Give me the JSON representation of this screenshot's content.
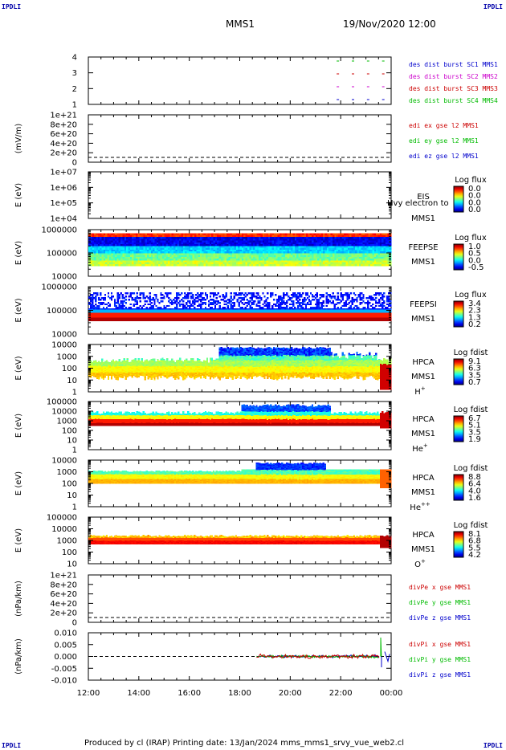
{
  "header": {
    "left_logo": "IPDLI",
    "right_logo": "IPDLI",
    "mission": "MMS1",
    "date": "19/Nov/2020 12:00"
  },
  "footer": {
    "left_logo": "IPDLI",
    "right_logo": "IPDLI",
    "text": "Produced by cl (IRAP)   Printing date: 13/Jan/2024   mms_mms1_srvy_vue_web2.cl"
  },
  "x_axis": {
    "ticks": [
      "12:00",
      "14:00",
      "16:00",
      "18:00",
      "20:00",
      "22:00",
      "00:00"
    ]
  },
  "panels": {
    "p1": {
      "yticks": [
        "4",
        "3",
        "2",
        "1"
      ],
      "legend": [
        "des dist burst SC1 MMS1",
        "des dist burst SC2 MMS2",
        "des dist burst SC3 MMS3",
        "des dist burst SC4 MMS4"
      ],
      "colors": [
        "#0000cc",
        "#cc00cc",
        "#cc0000",
        "#00bb00"
      ]
    },
    "p2": {
      "ylabel": "(mV/m)",
      "yticks": [
        "1e+21",
        "8e+20",
        "6e+20",
        "4e+20",
        "2e+20",
        "0"
      ],
      "legend": [
        "edi ex gse l2 MMS1",
        "edi ey gse l2 MMS1",
        "edi ez gse l2 MMS1"
      ],
      "colors": [
        "#cc0000",
        "#00bb00",
        "#0000cc"
      ]
    },
    "p3": {
      "ylabel": "E (eV)",
      "yticks": [
        "1e+07",
        "1e+06",
        "1e+05",
        "1e+04"
      ],
      "name": "EIS",
      "overlay": "Hvy electron to",
      "sc": "MMS1",
      "cb_title": "Log flux",
      "cb_ticks": [
        "0.0",
        "0.0",
        "0.0",
        "0.0"
      ]
    },
    "p4": {
      "ylabel": "E (eV)",
      "yticks": [
        "1000000",
        "100000",
        "10000"
      ],
      "name": "FEEPSE",
      "sc": "MMS1",
      "cb_title": "Log flux",
      "cb_ticks": [
        "1.0",
        "0.5",
        "0.0",
        "-0.5"
      ]
    },
    "p5": {
      "ylabel": "E (eV)",
      "yticks": [
        "1000000",
        "100000",
        "10000"
      ],
      "name": "FEEPSI",
      "sc": "MMS1",
      "cb_title": "Log flux",
      "cb_ticks": [
        "3.4",
        "2.3",
        "1.3",
        "0.2"
      ]
    },
    "p6": {
      "ylabel": "E (eV)",
      "yticks": [
        "10000",
        "1000",
        "100",
        "10",
        "1"
      ],
      "name": "HPCA",
      "sc": "MMS1",
      "species": "H",
      "species_sup": "+",
      "cb_title": "Log fdist",
      "cb_ticks": [
        "9.1",
        "6.3",
        "3.5",
        "0.7"
      ]
    },
    "p7": {
      "ylabel": "E (eV)",
      "yticks": [
        "100000",
        "10000",
        "1000",
        "100",
        "10",
        "1"
      ],
      "name": "HPCA",
      "sc": "MMS1",
      "species": "He",
      "species_sup": "+",
      "cb_title": "Log fdist",
      "cb_ticks": [
        "6.7",
        "5.1",
        "3.5",
        "1.9"
      ]
    },
    "p8": {
      "ylabel": "E (eV)",
      "yticks": [
        "10000",
        "1000",
        "100",
        "10",
        "1"
      ],
      "name": "HPCA",
      "sc": "MMS1",
      "species": "He",
      "species_sup": "++",
      "cb_title": "Log fdist",
      "cb_ticks": [
        "8.8",
        "6.4",
        "4.0",
        "1.6"
      ]
    },
    "p9": {
      "ylabel": "E (eV)",
      "yticks": [
        "100000",
        "10000",
        "1000",
        "100",
        "10"
      ],
      "name": "HPCA",
      "sc": "MMS1",
      "species": "O",
      "species_sup": "+",
      "cb_title": "Log fdist",
      "cb_ticks": [
        "8.1",
        "6.8",
        "5.5",
        "4.2"
      ]
    },
    "p10": {
      "ylabel": "(nPa/km)",
      "yticks": [
        "1e+21",
        "8e+20",
        "6e+20",
        "4e+20",
        "2e+20",
        "0"
      ],
      "legend": [
        "divPe x gse MMS1",
        "divPe y gse MMS1",
        "divPe z gse MMS1"
      ],
      "colors": [
        "#cc0000",
        "#00bb00",
        "#0000cc"
      ]
    },
    "p11": {
      "ylabel": "(nPa/km)",
      "yticks": [
        "0.010",
        "0.005",
        "0.000",
        "-0.005",
        "-0.010"
      ],
      "legend": [
        "divPi x gse MMS1",
        "divPi y gse MMS1",
        "divPi z gse MMS1"
      ],
      "colors": [
        "#cc0000",
        "#00bb00",
        "#0000cc"
      ]
    }
  },
  "chart_data": {
    "type": "heatmap",
    "x_range": [
      "19/Nov/2020 12:00",
      "20/Nov/2020 00:00"
    ],
    "panels": [
      {
        "id": "p1",
        "type": "scatter",
        "description_series": [
          "des dist burst SC1 MMS1",
          "des dist burst SC2 MMS2",
          "des dist burst SC3 MMS3",
          "des dist burst SC4 MMS4"
        ],
        "ylim": [
          0.5,
          4.5
        ]
      },
      {
        "id": "p2",
        "type": "line",
        "ylabel": "(mV/m)",
        "ylim": [
          0,
          1e+21
        ]
      },
      {
        "id": "p3",
        "type": "heatmap",
        "ylabel": "E (eV)",
        "ylog": true,
        "ylim": [
          10000.0,
          10000000.0
        ]
      },
      {
        "id": "p4",
        "type": "heatmap",
        "ylabel": "E (eV)",
        "ylog": true,
        "ylim": [
          10000,
          1000000
        ]
      },
      {
        "id": "p5",
        "type": "heatmap",
        "ylabel": "E (eV)",
        "ylog": true,
        "ylim": [
          10000,
          1000000
        ]
      },
      {
        "id": "p6",
        "type": "heatmap",
        "ylabel": "E (eV)",
        "ylog": true,
        "ylim": [
          1,
          10000
        ]
      },
      {
        "id": "p7",
        "type": "heatmap",
        "ylabel": "E (eV)",
        "ylog": true,
        "ylim": [
          1,
          100000
        ]
      },
      {
        "id": "p8",
        "type": "heatmap",
        "ylabel": "E (eV)",
        "ylog": true,
        "ylim": [
          1,
          10000
        ]
      },
      {
        "id": "p9",
        "type": "heatmap",
        "ylabel": "E (eV)",
        "ylog": true,
        "ylim": [
          10,
          100000
        ]
      },
      {
        "id": "p10",
        "type": "line",
        "ylabel": "(nPa/km)",
        "ylim": [
          0,
          1e+21
        ]
      },
      {
        "id": "p11",
        "type": "line",
        "ylabel": "(nPa/km)",
        "ylim": [
          -0.01,
          0.01
        ],
        "series": [
          {
            "name": "divPi x gse MMS1"
          },
          {
            "name": "divPi y gse MMS1"
          },
          {
            "name": "divPi z gse MMS1"
          }
        ],
        "data_start": "18:40"
      }
    ]
  }
}
